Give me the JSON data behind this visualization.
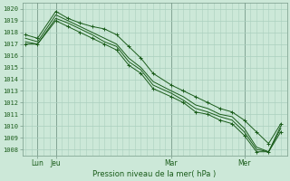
{
  "title": "Pression niveau de la mer( hPa )",
  "ylabel_vals": [
    1008,
    1009,
    1010,
    1011,
    1012,
    1013,
    1014,
    1015,
    1016,
    1017,
    1018,
    1019,
    1020
  ],
  "ylim": [
    1007.5,
    1020.5
  ],
  "bg_color": "#cce8d8",
  "grid_color": "#aacfbe",
  "line_color": "#1a5c1a",
  "tick_label_color": "#1a5c1a",
  "xlabel_color": "#1a5c1a",
  "x_tick_positions": [
    8,
    20,
    96,
    144
  ],
  "x_tick_labels": [
    "Lun",
    "Jeu",
    "Mar",
    "Mer"
  ],
  "x_minor_step": 4,
  "lines": [
    {
      "x": [
        0,
        8,
        20,
        28,
        36,
        44,
        52,
        60,
        68,
        76,
        84,
        96,
        104,
        112,
        120,
        128,
        136,
        144,
        152,
        160,
        168
      ],
      "y": [
        1017.8,
        1017.5,
        1019.8,
        1019.2,
        1018.8,
        1018.5,
        1018.3,
        1017.8,
        1016.8,
        1015.8,
        1014.5,
        1013.5,
        1013.0,
        1012.5,
        1012.0,
        1011.5,
        1011.2,
        1010.5,
        1009.5,
        1008.5,
        1010.2
      ],
      "marker": "+"
    },
    {
      "x": [
        0,
        8,
        20,
        28,
        36,
        44,
        52,
        60,
        68,
        76,
        84,
        96,
        104,
        112,
        120,
        128,
        136,
        144,
        152,
        160,
        168
      ],
      "y": [
        1017.5,
        1017.2,
        1019.5,
        1019.0,
        1018.5,
        1018.0,
        1017.5,
        1017.0,
        1015.8,
        1015.0,
        1013.8,
        1013.0,
        1012.5,
        1011.8,
        1011.5,
        1011.0,
        1010.8,
        1009.8,
        1008.2,
        1007.8,
        1010.0
      ],
      "marker": null
    },
    {
      "x": [
        0,
        8,
        20,
        28,
        36,
        44,
        52,
        60,
        68,
        76,
        84,
        96,
        104,
        112,
        120,
        128,
        136,
        144,
        152,
        160,
        168
      ],
      "y": [
        1017.2,
        1017.0,
        1019.2,
        1018.8,
        1018.3,
        1017.8,
        1017.2,
        1016.8,
        1015.5,
        1014.8,
        1013.5,
        1012.8,
        1012.2,
        1011.5,
        1011.2,
        1010.8,
        1010.5,
        1009.5,
        1008.0,
        1007.8,
        1009.8
      ],
      "marker": null
    },
    {
      "x": [
        0,
        8,
        20,
        28,
        36,
        44,
        52,
        60,
        68,
        76,
        84,
        96,
        104,
        112,
        120,
        128,
        136,
        144,
        152,
        160,
        168
      ],
      "y": [
        1017.0,
        1017.0,
        1019.0,
        1018.5,
        1018.0,
        1017.5,
        1017.0,
        1016.5,
        1015.2,
        1014.5,
        1013.2,
        1012.5,
        1012.0,
        1011.2,
        1011.0,
        1010.5,
        1010.2,
        1009.2,
        1007.8,
        1007.8,
        1009.5
      ],
      "marker": "+"
    }
  ],
  "xlim": [
    -2,
    172
  ],
  "figsize": [
    3.2,
    2.0
  ],
  "dpi": 100
}
